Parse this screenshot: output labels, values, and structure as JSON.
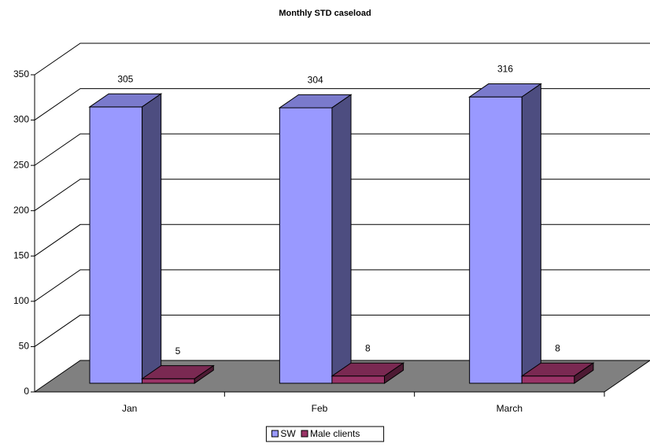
{
  "chart_data": {
    "type": "bar",
    "title": "Monthly STD caseload",
    "categories": [
      "Jan",
      "Feb",
      "March"
    ],
    "series": [
      {
        "name": "SW",
        "color": "#9999ff",
        "values": [
          305,
          304,
          316
        ]
      },
      {
        "name": "Male clients",
        "color": "#993366",
        "values": [
          5,
          8,
          8
        ]
      }
    ],
    "ylim": [
      0,
      350
    ],
    "yticks": [
      0,
      50,
      100,
      150,
      200,
      250,
      300,
      350
    ],
    "grid": true,
    "legend": "bottom"
  }
}
